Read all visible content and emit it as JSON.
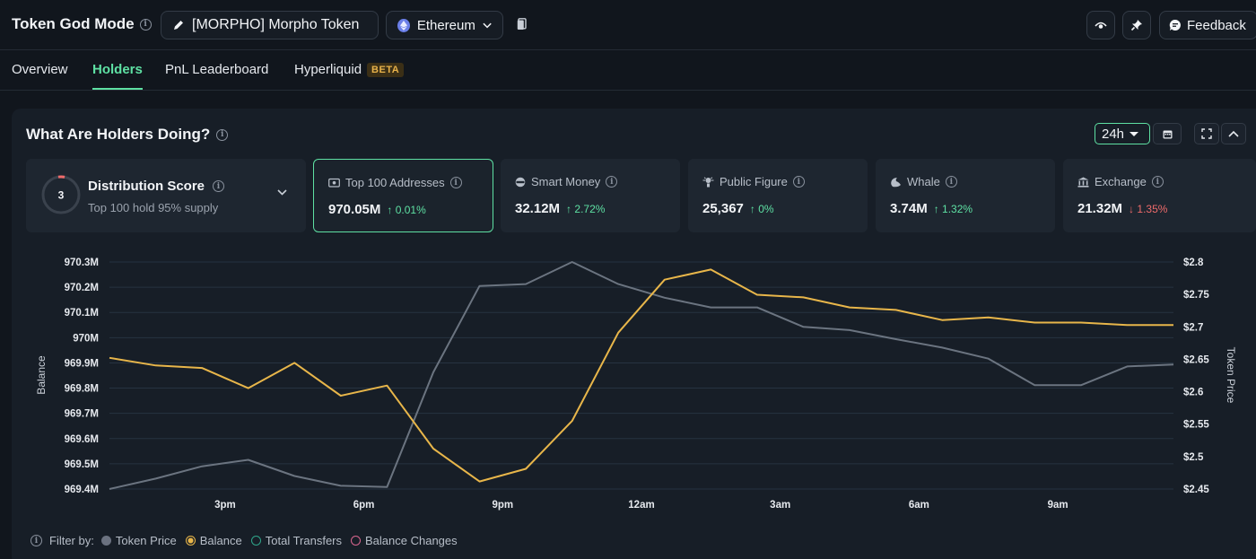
{
  "header": {
    "app_title": "Token God Mode",
    "token_label": "[MORPHO] Morpho Token",
    "chain_label": "Ethereum",
    "feedback_label": "Feedback"
  },
  "tabs": [
    {
      "label": "Overview",
      "active": false
    },
    {
      "label": "Holders",
      "active": true
    },
    {
      "label": "PnL Leaderboard",
      "active": false
    },
    {
      "label": "Hyperliquid",
      "active": false,
      "badge": "BETA"
    }
  ],
  "panel": {
    "title": "What Are Holders Doing?",
    "range": "24h"
  },
  "distribution": {
    "score": "3",
    "title": "Distribution Score",
    "subtitle": "Top 100 hold 95% supply"
  },
  "cards": [
    {
      "label": "Top 100 Addresses",
      "value": "970.05M",
      "change": "0.01%",
      "direction": "up",
      "icon": "wallet-icon",
      "selected": true
    },
    {
      "label": "Smart Money",
      "value": "32.12M",
      "change": "2.72%",
      "direction": "up",
      "icon": "smart-money-icon",
      "selected": false
    },
    {
      "label": "Public Figure",
      "value": "25,367",
      "change": "0%",
      "direction": "up",
      "icon": "public-figure-icon",
      "selected": false
    },
    {
      "label": "Whale",
      "value": "3.74M",
      "change": "1.32%",
      "direction": "up",
      "icon": "whale-icon",
      "selected": false
    },
    {
      "label": "Exchange",
      "value": "21.32M",
      "change": "1.35%",
      "direction": "down",
      "icon": "exchange-icon",
      "selected": false
    }
  ],
  "legend": {
    "filter_label": "Filter by:",
    "items": [
      {
        "label": "Token Price",
        "color": "#6b7280",
        "style": "filled"
      },
      {
        "label": "Balance",
        "color": "#e8b64a",
        "style": "ring-filled"
      },
      {
        "label": "Total Transfers",
        "color": "#2fa58a",
        "style": "outline"
      },
      {
        "label": "Balance Changes",
        "color": "#d9668f",
        "style": "outline"
      }
    ]
  },
  "chart_data": {
    "type": "line",
    "ylabel": "Balance",
    "y2label": "Token Price",
    "x_ticks": [
      "3pm",
      "6pm",
      "9pm",
      "12am",
      "3am",
      "6am",
      "9am"
    ],
    "y_ticks": [
      "970.3M",
      "970.2M",
      "970.1M",
      "970M",
      "969.9M",
      "969.8M",
      "969.7M",
      "969.6M",
      "969.5M",
      "969.4M"
    ],
    "y2_ticks": [
      "$2.8",
      "$2.75",
      "$2.7",
      "$2.65",
      "$2.6",
      "$2.55",
      "$2.5",
      "$2.45"
    ],
    "ylim": [
      969.4,
      970.3
    ],
    "y2lim": [
      2.45,
      2.8
    ],
    "series": [
      {
        "name": "Balance",
        "axis": "left",
        "color": "#e8b64a",
        "values": [
          969.92,
          969.89,
          969.88,
          969.8,
          969.9,
          969.77,
          969.81,
          969.56,
          969.43,
          969.48,
          969.67,
          970.02,
          970.23,
          970.27,
          970.17,
          970.16,
          970.12,
          970.11,
          970.07,
          970.08,
          970.06,
          970.06,
          970.05,
          970.05
        ]
      },
      {
        "name": "Token Price",
        "axis": "right",
        "color": "#6b7480",
        "values": [
          2.45,
          2.466,
          2.485,
          2.495,
          2.47,
          2.455,
          2.453,
          2.63,
          2.763,
          2.766,
          2.8,
          2.766,
          2.745,
          2.73,
          2.73,
          2.7,
          2.695,
          2.681,
          2.668,
          2.651,
          2.61,
          2.61,
          2.639,
          2.642
        ]
      }
    ]
  }
}
